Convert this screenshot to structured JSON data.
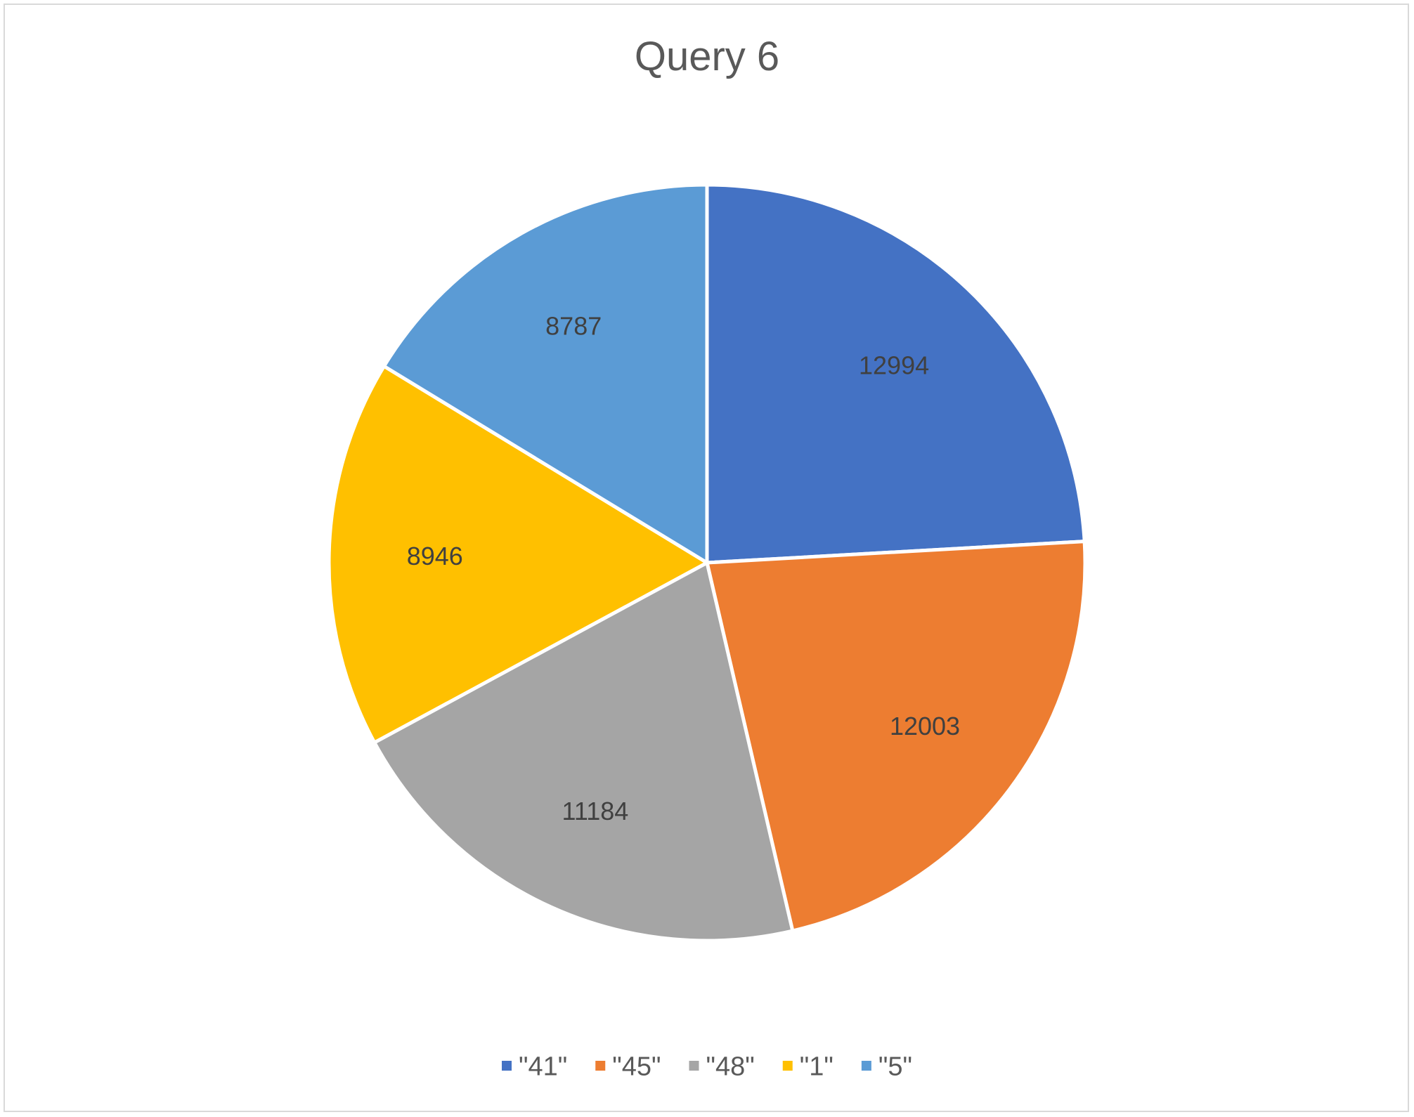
{
  "chart_data": {
    "type": "pie",
    "title": "Query 6",
    "categories": [
      "\"41\"",
      "\"45\"",
      "\"48\"",
      "\"1\"",
      "\"5\""
    ],
    "values": [
      12994,
      12003,
      11184,
      8946,
      8787
    ],
    "colors": [
      "#4472C4",
      "#ED7D31",
      "#A5A5A5",
      "#FFC000",
      "#5B9BD5"
    ],
    "data_labels": [
      "12994",
      "12003",
      "11184",
      "8946",
      "8787"
    ],
    "legend_position": "bottom",
    "start_angle_degrees": 0,
    "direction": "clockwise"
  }
}
